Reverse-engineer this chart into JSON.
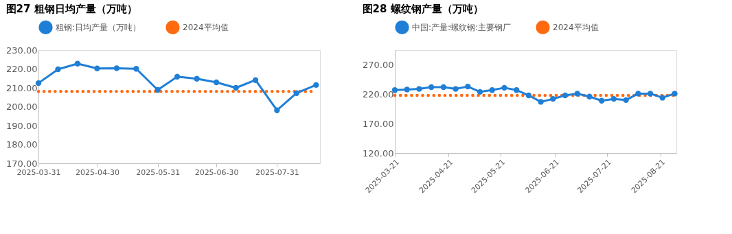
{
  "chart_data": [
    {
      "type": "line",
      "title": "图27 粗钢日均产量（万吨）",
      "legend": "top",
      "grid": false,
      "x": [
        "2025-03-31",
        "2025-04-10",
        "2025-04-20",
        "2025-04-30",
        "2025-05-10",
        "2025-05-20",
        "2025-05-31",
        "2025-06-10",
        "2025-06-20",
        "2025-06-30",
        "2025-07-10",
        "2025-07-20",
        "2025-07-31",
        "2025-08-10",
        "2025-08-20"
      ],
      "xlim": [
        "2025-03-31",
        "2025-08-22"
      ],
      "xticks": [
        "2025-03-31",
        "2025-04-30",
        "2025-05-31",
        "2025-06-30",
        "2025-07-31"
      ],
      "ylim": [
        170,
        230
      ],
      "yticks": [
        {
          "value": 170,
          "label": "170.00"
        },
        {
          "value": 180,
          "label": "180.00"
        },
        {
          "value": 190,
          "label": "190.00"
        },
        {
          "value": 200,
          "label": "200.00"
        },
        {
          "value": 210,
          "label": "210.00"
        },
        {
          "value": 220,
          "label": "220.00"
        },
        {
          "value": 230,
          "label": "230.00"
        }
      ],
      "series": [
        {
          "name": "粗钢:日均产量（万吨）",
          "color": "#1f7fd6",
          "marker": "circle",
          "line_style": "solid",
          "values": [
            212.5,
            219.8,
            222.8,
            220.3,
            220.4,
            220.1,
            208.9,
            215.9,
            214.8,
            212.9,
            210.0,
            214.1,
            198.1,
            207.2,
            211.5
          ]
        },
        {
          "name": "2024平均值",
          "color": "#ff6a10",
          "marker": "none",
          "line_style": "dotted",
          "values": [
            208.1,
            208.1,
            208.1,
            208.1,
            208.1,
            208.1,
            208.1,
            208.1,
            208.1,
            208.1,
            208.1,
            208.1,
            208.1,
            208.1,
            208.1
          ]
        }
      ]
    },
    {
      "type": "line",
      "title": "图28 螺纹钢产量（万吨）",
      "legend": "top",
      "grid": false,
      "x": [
        "2025-03-21",
        "2025-03-28",
        "2025-04-04",
        "2025-04-11",
        "2025-04-18",
        "2025-04-25",
        "2025-05-02",
        "2025-05-09",
        "2025-05-16",
        "2025-05-23",
        "2025-05-30",
        "2025-06-06",
        "2025-06-13",
        "2025-06-20",
        "2025-06-27",
        "2025-07-04",
        "2025-07-11",
        "2025-07-18",
        "2025-07-25",
        "2025-08-01",
        "2025-08-08",
        "2025-08-15",
        "2025-08-22",
        "2025-08-29"
      ],
      "xlim": [
        "2025-03-21",
        "2025-08-30"
      ],
      "xticks": [
        "2025-03-21",
        "2025-04-21",
        "2025-05-21",
        "2025-06-21",
        "2025-07-21",
        "2025-08-21"
      ],
      "ylim": [
        120,
        295
      ],
      "yticks": [
        {
          "value": 120,
          "label": "120.00"
        },
        {
          "value": 170,
          "label": "170.00"
        },
        {
          "value": 220,
          "label": "220.00"
        },
        {
          "value": 270,
          "label": "270.00"
        }
      ],
      "series": [
        {
          "name": "中国:产量:螺纹钢:主要钢厂",
          "color": "#1f7fd6",
          "marker": "circle",
          "line_style": "solid",
          "values": [
            227,
            228,
            229,
            232,
            232,
            229,
            233,
            224,
            227,
            231,
            227,
            218,
            207,
            212,
            218,
            221,
            216,
            209,
            212,
            210,
            221,
            221,
            214,
            221
          ]
        },
        {
          "name": "2024平均值",
          "color": "#ff6a10",
          "marker": "none",
          "line_style": "dotted",
          "values": [
            218,
            218,
            218,
            218,
            218,
            218,
            218,
            218,
            218,
            218,
            218,
            218,
            218,
            218,
            218,
            218,
            218,
            218,
            218,
            218,
            218,
            218,
            218,
            218
          ]
        }
      ]
    }
  ]
}
